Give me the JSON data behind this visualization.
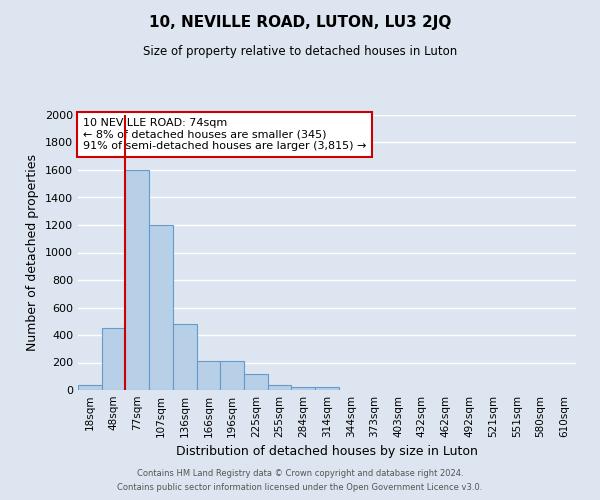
{
  "title": "10, NEVILLE ROAD, LUTON, LU3 2JQ",
  "subtitle": "Size of property relative to detached houses in Luton",
  "xlabel": "Distribution of detached houses by size in Luton",
  "ylabel": "Number of detached properties",
  "bar_labels": [
    "18sqm",
    "48sqm",
    "77sqm",
    "107sqm",
    "136sqm",
    "166sqm",
    "196sqm",
    "225sqm",
    "255sqm",
    "284sqm",
    "314sqm",
    "344sqm",
    "373sqm",
    "403sqm",
    "432sqm",
    "462sqm",
    "492sqm",
    "521sqm",
    "551sqm",
    "580sqm",
    "610sqm"
  ],
  "bar_values": [
    35,
    450,
    1600,
    1200,
    480,
    210,
    210,
    120,
    40,
    25,
    20,
    0,
    0,
    0,
    0,
    0,
    0,
    0,
    0,
    0,
    0
  ],
  "bar_color": "#b8cfe8",
  "bar_edge_color": "#6699cc",
  "vline_x": 1.5,
  "vline_color": "#cc0000",
  "ylim": [
    0,
    2000
  ],
  "yticks": [
    0,
    200,
    400,
    600,
    800,
    1000,
    1200,
    1400,
    1600,
    1800,
    2000
  ],
  "annotation_title": "10 NEVILLE ROAD: 74sqm",
  "annotation_line1": "← 8% of detached houses are smaller (345)",
  "annotation_line2": "91% of semi-detached houses are larger (3,815) →",
  "annotation_box_color": "#ffffff",
  "annotation_box_edge_color": "#cc0000",
  "footer1": "Contains HM Land Registry data © Crown copyright and database right 2024.",
  "footer2": "Contains public sector information licensed under the Open Government Licence v3.0.",
  "background_color": "#dde6f0",
  "plot_bg_color": "#dde6f0",
  "grid_color": "#ffffff"
}
